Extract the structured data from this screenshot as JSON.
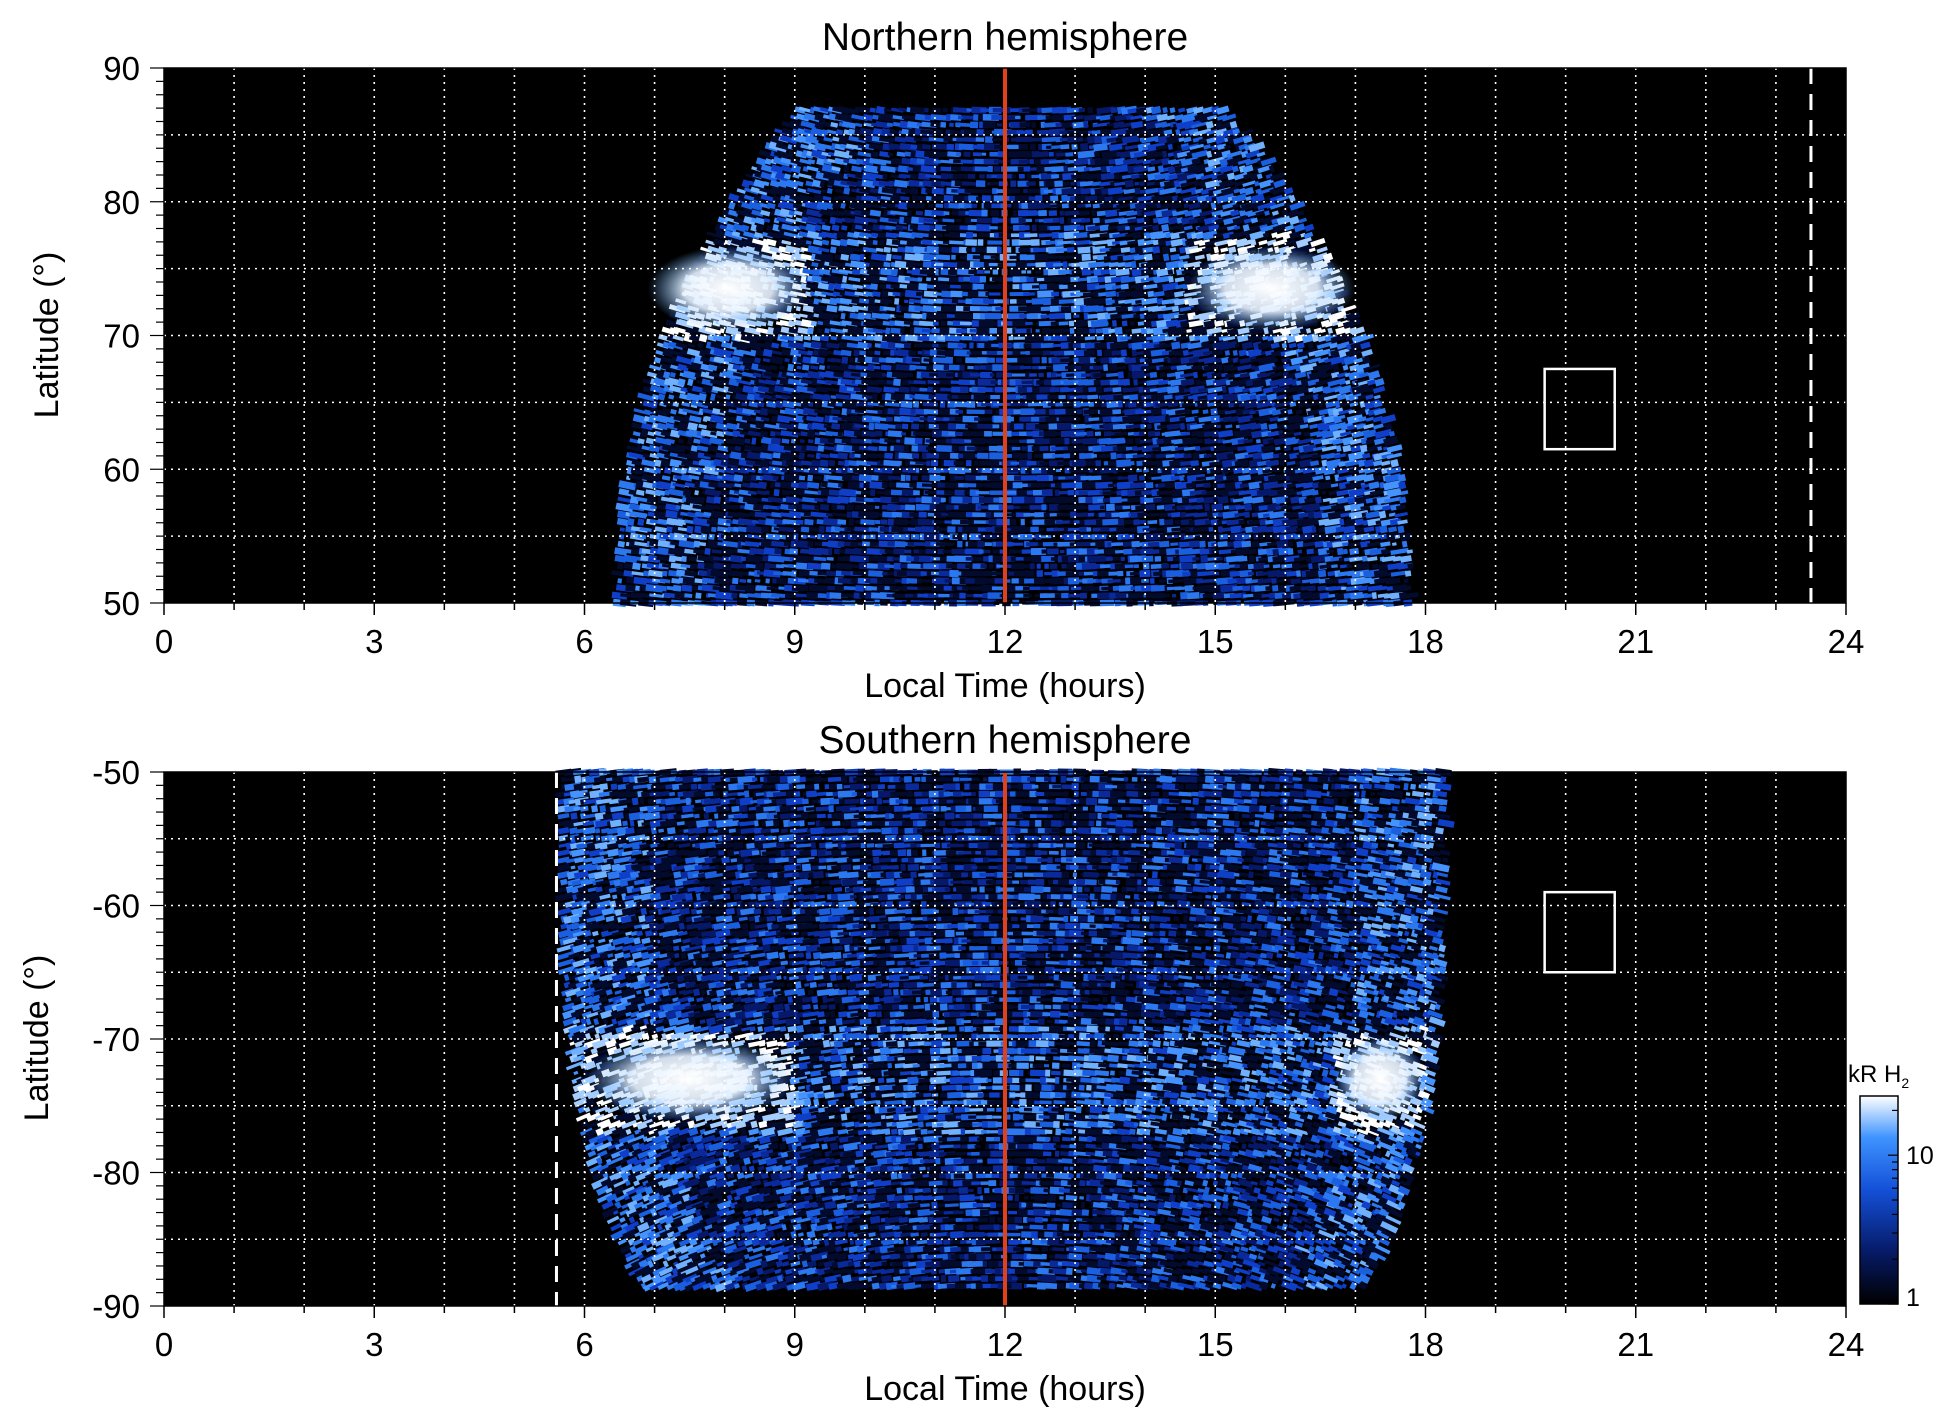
{
  "chart_data": [
    {
      "type": "heatmap",
      "title": "Northern hemisphere",
      "xlabel": "Local Time (hours)",
      "ylabel": "Latitude (°)",
      "xlim": [
        0,
        24
      ],
      "ylim": [
        50,
        90
      ],
      "x_ticks": [
        "0",
        "3",
        "6",
        "9",
        "12",
        "15",
        "18",
        "21",
        "24"
      ],
      "y_ticks": [
        "50",
        "60",
        "70",
        "80",
        "90"
      ],
      "grid": true,
      "colormap": {
        "low": "#000000",
        "mid": "#1a5fe0",
        "high": "#ffffff"
      },
      "noon_line": {
        "x": 12,
        "color": "#e0401a"
      },
      "dashed_line": {
        "x": 23.5,
        "color": "#ffffff"
      },
      "box": {
        "x": [
          19.7,
          20.7
        ],
        "y": [
          61.5,
          67.5
        ],
        "color": "#ffffff"
      },
      "features": {
        "coverage_lt_range": [
          6.5,
          17.8
        ],
        "coverage_lat_top": 87,
        "main_oval_lat_center": 73.5,
        "main_oval_bright_lt": [
          [
            6.9,
            9.2
          ],
          [
            14.6,
            17.0
          ]
        ],
        "main_oval_peak_kR": 25
      }
    },
    {
      "type": "heatmap",
      "title": "Southern hemisphere",
      "xlabel": "Local Time (hours)",
      "ylabel": "Latitude (°)",
      "xlim": [
        0,
        24
      ],
      "ylim": [
        -90,
        -50
      ],
      "x_ticks": [
        "0",
        "3",
        "6",
        "9",
        "12",
        "15",
        "18",
        "21",
        "24"
      ],
      "y_ticks": [
        "-50",
        "-60",
        "-70",
        "-80",
        "-90"
      ],
      "grid": true,
      "colormap": {
        "low": "#000000",
        "mid": "#1a5fe0",
        "high": "#ffffff"
      },
      "noon_line": {
        "x": 12,
        "color": "#e0401a"
      },
      "dashed_line": {
        "x": 5.6,
        "color": "#ffffff"
      },
      "box": {
        "x": [
          19.7,
          20.7
        ],
        "y": [
          -65,
          -59
        ],
        "color": "#ffffff"
      },
      "features": {
        "coverage_lt_range": [
          5.7,
          18.3
        ],
        "coverage_lat_bottom": -89,
        "main_oval_lat_center": -73,
        "main_oval_bright_lt": [
          [
            6.0,
            9.0
          ],
          [
            16.7,
            18.0
          ]
        ],
        "main_oval_peak_kR": 25
      }
    }
  ],
  "colorbar": {
    "label_main": "kR H",
    "label_sub": "2",
    "scale": "log",
    "range": [
      1,
      25
    ],
    "ticks": [
      "1",
      "10"
    ]
  }
}
